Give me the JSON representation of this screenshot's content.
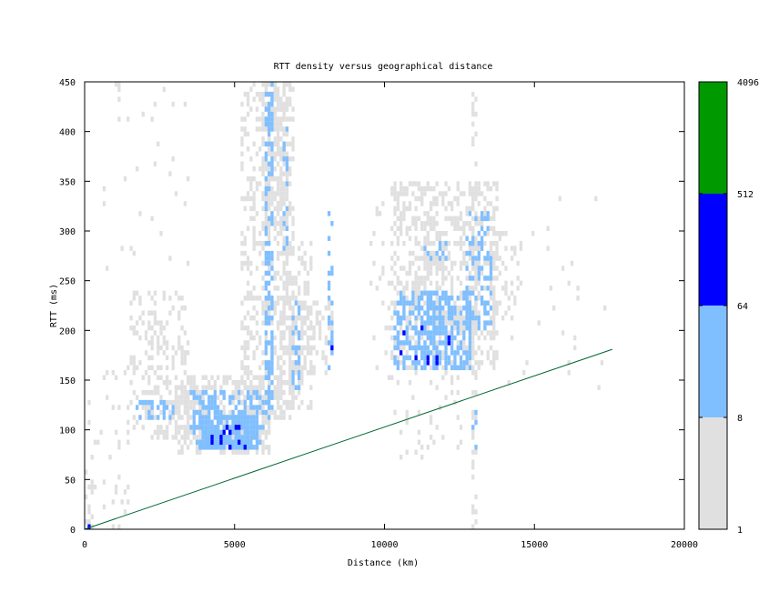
{
  "chart_data": {
    "type": "heatmap",
    "title": "RTT density versus geographical distance",
    "xlabel": "Distance (km)",
    "ylabel": "RTT (ms)",
    "xlim": [
      0,
      20000
    ],
    "ylim": [
      0,
      450
    ],
    "x_ticks": [
      0,
      5000,
      10000,
      15000,
      20000
    ],
    "y_ticks": [
      0,
      50,
      100,
      150,
      200,
      250,
      300,
      350,
      400,
      450
    ],
    "cell_size": {
      "distance_km": 100,
      "rtt_ms": 5
    },
    "colorbar": {
      "scale": "log2",
      "tick_labels": [
        "1",
        "8",
        "64",
        "512",
        "4096"
      ],
      "bands": [
        {
          "from": 1,
          "to": 8,
          "color": "#e0e0e0"
        },
        {
          "from": 8,
          "to": 64,
          "color": "#80bfff"
        },
        {
          "from": 64,
          "to": 512,
          "color": "#0000ff"
        },
        {
          "from": 512,
          "to": 4096,
          "color": "#009900"
        }
      ]
    },
    "reference_line": {
      "color": "#006633",
      "points": [
        {
          "x": 0,
          "y": 0
        },
        {
          "x": 17600,
          "y": 181
        }
      ]
    },
    "regions": [
      {
        "x": [
          0,
          300
        ],
        "y": [
          0,
          60
        ],
        "level": 0,
        "density": 0.35
      },
      {
        "x": [
          0,
          200
        ],
        "y": [
          0,
          5
        ],
        "level": 2,
        "density": 0.8
      },
      {
        "x": [
          100,
          1500
        ],
        "y": [
          0,
          170
        ],
        "level": 0,
        "density": 0.08
      },
      {
        "x": [
          1500,
          3500
        ],
        "y": [
          90,
          240
        ],
        "level": 0,
        "density": 0.3
      },
      {
        "x": [
          1700,
          3000
        ],
        "y": [
          110,
          130
        ],
        "level": 1,
        "density": 0.35
      },
      {
        "x": [
          3000,
          6200
        ],
        "y": [
          75,
          155
        ],
        "level": 0,
        "density": 0.55
      },
      {
        "x": [
          3500,
          6000
        ],
        "y": [
          80,
          140
        ],
        "level": 1,
        "density": 0.5
      },
      {
        "x": [
          3800,
          5800
        ],
        "y": [
          80,
          115
        ],
        "level": 1,
        "density": 0.8
      },
      {
        "x": [
          4100,
          5400
        ],
        "y": [
          80,
          105
        ],
        "level": 2,
        "density": 0.12
      },
      {
        "x": [
          5200,
          7000
        ],
        "y": [
          110,
          450
        ],
        "level": 0,
        "density": 0.35
      },
      {
        "x": [
          5900,
          6800
        ],
        "y": [
          300,
          450
        ],
        "level": 0,
        "density": 0.55
      },
      {
        "x": [
          6000,
          6300
        ],
        "y": [
          110,
          450
        ],
        "level": 1,
        "density": 0.45
      },
      {
        "x": [
          6600,
          6800
        ],
        "y": [
          280,
          430
        ],
        "level": 1,
        "density": 0.25
      },
      {
        "x": [
          6400,
          7600
        ],
        "y": [
          120,
          290
        ],
        "level": 0,
        "density": 0.3
      },
      {
        "x": [
          6800,
          8300
        ],
        "y": [
          150,
          230
        ],
        "level": 0,
        "density": 0.4
      },
      {
        "x": [
          6900,
          7200
        ],
        "y": [
          140,
          230
        ],
        "level": 1,
        "density": 0.4
      },
      {
        "x": [
          8100,
          8300
        ],
        "y": [
          160,
          320
        ],
        "level": 1,
        "density": 0.35
      },
      {
        "x": [
          8100,
          8300
        ],
        "y": [
          170,
          190
        ],
        "level": 2,
        "density": 0.3
      },
      {
        "x": [
          9500,
          10200
        ],
        "y": [
          150,
          340
        ],
        "level": 0,
        "density": 0.08
      },
      {
        "x": [
          10200,
          13800
        ],
        "y": [
          160,
          350
        ],
        "level": 0,
        "density": 0.4
      },
      {
        "x": [
          10300,
          12900
        ],
        "y": [
          160,
          240
        ],
        "level": 1,
        "density": 0.55
      },
      {
        "x": [
          10500,
          12200
        ],
        "y": [
          165,
          205
        ],
        "level": 2,
        "density": 0.07
      },
      {
        "x": [
          11300,
          12100
        ],
        "y": [
          260,
          300
        ],
        "level": 0,
        "density": 0.55
      },
      {
        "x": [
          11300,
          12100
        ],
        "y": [
          270,
          290
        ],
        "level": 1,
        "density": 0.35
      },
      {
        "x": [
          12700,
          13600
        ],
        "y": [
          200,
          320
        ],
        "level": 1,
        "density": 0.35
      },
      {
        "x": [
          13600,
          14600
        ],
        "y": [
          210,
          300
        ],
        "level": 0,
        "density": 0.3
      },
      {
        "x": [
          10200,
          12600
        ],
        "y": [
          70,
          160
        ],
        "level": 0,
        "density": 0.12
      },
      {
        "x": [
          12900,
          13100
        ],
        "y": [
          0,
          450
        ],
        "level": 0,
        "density": 0.35
      },
      {
        "x": [
          12900,
          13100
        ],
        "y": [
          80,
          130
        ],
        "level": 1,
        "density": 0.3
      },
      {
        "x": [
          500,
          3500
        ],
        "y": [
          260,
          450
        ],
        "level": 0,
        "density": 0.02
      },
      {
        "x": [
          13500,
          17600
        ],
        "y": [
          130,
          340
        ],
        "level": 0,
        "density": 0.01
      }
    ]
  }
}
